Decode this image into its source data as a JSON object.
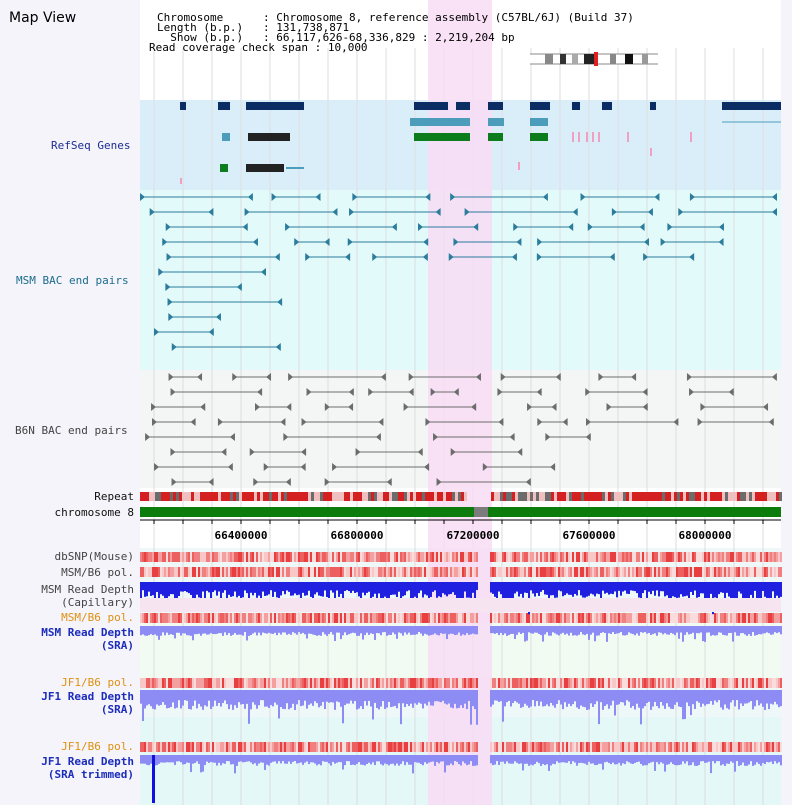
{
  "title": "Map View",
  "header": {
    "rows": [
      {
        "label": "Chromosome      ",
        "value": ": Chromosome 8, reference assembly (C57BL/6J) (Build 37)"
      },
      {
        "label": "Length (b.p.)   ",
        "value": ": 131,738,871"
      },
      {
        "label": "  Show (b.p.)   ",
        "value": ": 66,117,626-68,336,829 : 2,219,204 bp"
      },
      {
        "label": "Read coverage check span ",
        "value": ": 10,000"
      }
    ]
  },
  "tracks": {
    "refseq": "RefSeq Genes",
    "msm_bac": "MSM BAC end pairs",
    "b6n_bac": "B6N BAC end pairs",
    "repeat": "Repeat",
    "chromosome": "chromosome 8",
    "dbsnp": "dbSNP(Mouse)",
    "msm_b6_pol": "MSM/B6 pol.",
    "msm_depth_cap_1": "MSM Read Depth",
    "msm_depth_cap_2": "(Capillary)",
    "msm_b6_pol_2": "MSM/B6 pol.",
    "msm_depth_sra_1": "MSM Read Depth",
    "msm_depth_sra_2": "(SRA)",
    "jf1_b6_pol": "JF1/B6 pol.",
    "jf1_depth_sra_1": "JF1 Read Depth",
    "jf1_depth_sra_2": "(SRA)",
    "jf1_b6_pol_2": "JF1/B6 pol.",
    "jf1_depth_trim_1": "JF1 Read Depth",
    "jf1_depth_trim_2": "(SRA trimmed)"
  },
  "axis": {
    "ticks": [
      "66400000",
      "66800000",
      "67200000",
      "67600000",
      "68000000"
    ]
  },
  "colors": {
    "highlight": "#f8dcf4",
    "refseq_bg": "#daeefa",
    "msm_bg": "#e2fafa",
    "b6n_bg": "#f4f6f6",
    "gene_navy": "#0c2c64",
    "gene_teal": "#4c9cbc",
    "gene_green": "#0c7c1c",
    "bac_teal": "#2c7c9c",
    "bac_grey": "#6c6c6c",
    "chrom_green": "#0c7c0c",
    "depth_blue": "#1c1cdc",
    "depth_lavender": "#8c8cf4"
  }
}
